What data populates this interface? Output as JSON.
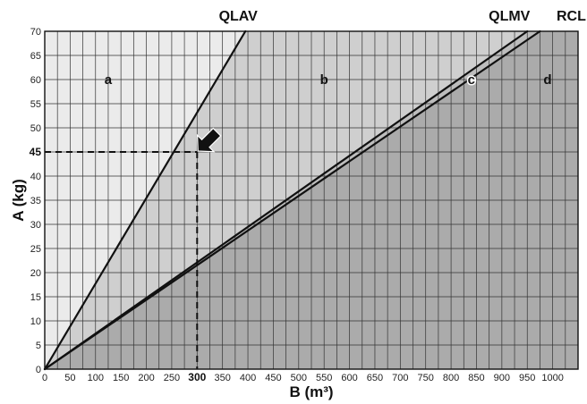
{
  "chart_data": {
    "type": "line",
    "xlabel": "B (m³)",
    "ylabel": "A (kg)",
    "xlim": [
      0,
      1050
    ],
    "ylim": [
      0,
      70
    ],
    "x_ticks": [
      "0",
      "50",
      "100",
      "150",
      "200",
      "250",
      "300",
      "350",
      "400",
      "450",
      "500",
      "550",
      "600",
      "650",
      "700",
      "750",
      "800",
      "850",
      "900",
      "950",
      "1000"
    ],
    "y_ticks": [
      "0",
      "5",
      "10",
      "15",
      "20",
      "25",
      "30",
      "35",
      "40",
      "45",
      "50",
      "55",
      "60",
      "65",
      "70"
    ],
    "highlighted_x_tick": "300",
    "highlighted_y_tick": "45",
    "grid": true,
    "series": [
      {
        "name": "QLAV",
        "x": [
          0,
          395
        ],
        "y": [
          0,
          70
        ]
      },
      {
        "name": "QLMV",
        "x": [
          0,
          950
        ],
        "y": [
          0,
          70
        ]
      },
      {
        "name": "RCL",
        "x": [
          0,
          975
        ],
        "y": [
          0,
          70
        ]
      }
    ],
    "regions": [
      {
        "label": "a",
        "x": 125,
        "y": 60,
        "color": "#ebebeb"
      },
      {
        "label": "b",
        "x": 550,
        "y": 60,
        "color": "#cfcfcf"
      },
      {
        "label": "c",
        "x": 840,
        "y": 60,
        "color": "#bdbdbd"
      },
      {
        "label": "d",
        "x": 990,
        "y": 60,
        "color": "#ababab"
      }
    ],
    "reference_point": {
      "x": 300,
      "y": 45
    }
  }
}
